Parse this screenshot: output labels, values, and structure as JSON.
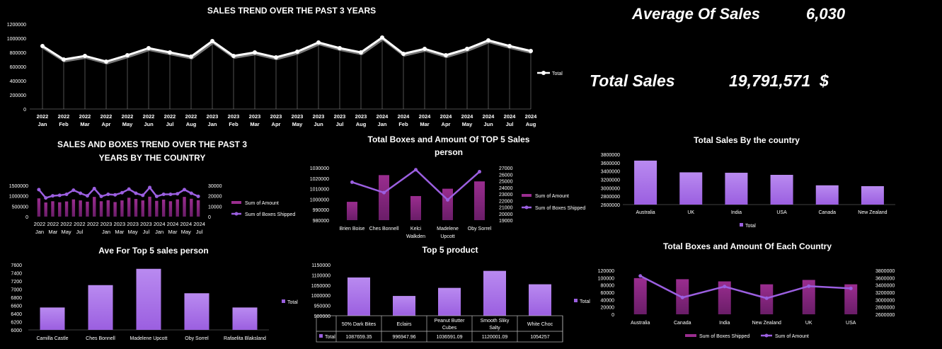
{
  "kpis": {
    "avg_label": "Average Of Sales",
    "avg_value": "6,030",
    "total_label": "Total Sales",
    "total_value": "19,791,571",
    "total_currency": "$"
  },
  "colors": {
    "purple": "#9b5fe0",
    "purple_light": "#b98af0",
    "magenta": "#9a2d8f",
    "line": "#ffffff"
  },
  "chart_data": [
    {
      "id": "trend",
      "type": "line",
      "title": "SALES TREND OVER THE PAST 3 YEARS",
      "years": [
        "2022",
        "2022",
        "2022",
        "2022",
        "2022",
        "2022",
        "2022",
        "2022",
        "2023",
        "2023",
        "2023",
        "2023",
        "2023",
        "2023",
        "2023",
        "2023",
        "2024",
        "2024",
        "2024",
        "2024",
        "2024",
        "2024",
        "2024",
        "2024"
      ],
      "months": [
        "Jan",
        "Feb",
        "Mar",
        "Apr",
        "May",
        "Jun",
        "Jul",
        "Aug",
        "Jan",
        "Feb",
        "Mar",
        "Apr",
        "May",
        "Jun",
        "Jul",
        "Aug",
        "Jan",
        "Feb",
        "Mar",
        "Apr",
        "May",
        "Jun",
        "Jul",
        "Aug"
      ],
      "values": [
        890000,
        700000,
        750000,
        670000,
        760000,
        860000,
        800000,
        740000,
        960000,
        750000,
        800000,
        730000,
        810000,
        940000,
        860000,
        800000,
        1010000,
        780000,
        850000,
        760000,
        850000,
        970000,
        890000,
        820000
      ],
      "ylim": [
        0,
        1200000
      ],
      "yticks": [
        0,
        200000,
        400000,
        600000,
        800000,
        1000000,
        1200000
      ],
      "legend": [
        "Total"
      ]
    },
    {
      "id": "salesboxes",
      "type": "bar+line",
      "title": [
        "SALES AND BOXES TREND OVER THE PAST 3",
        "YEARS BY THE COUNTRY"
      ],
      "amount": [
        880000,
        680000,
        740000,
        690000,
        730000,
        830000,
        780000,
        720000,
        950000,
        740000,
        790000,
        700000,
        780000,
        910000,
        850000,
        780000,
        960000,
        760000,
        820000,
        740000,
        830000,
        950000,
        860000,
        790000
      ],
      "boxes": [
        26000,
        18000,
        20000,
        20500,
        21500,
        25500,
        22500,
        20000,
        27000,
        19500,
        21500,
        21000,
        23000,
        26500,
        22500,
        20500,
        28000,
        19500,
        21500,
        21500,
        22000,
        26000,
        22500,
        19500
      ],
      "ylim_left": [
        0,
        1500000
      ],
      "yticks_left": [
        "0",
        "500000",
        "1000000",
        "1500000"
      ],
      "ylim_right": [
        0,
        30000
      ],
      "yticks_right": [
        "0",
        "10000",
        "20000",
        "30000"
      ],
      "x_years": [
        "2022",
        "2022",
        "2022",
        "2022",
        "2022",
        "2023",
        "2023",
        "2023",
        "2023",
        "2024",
        "2024",
        "2024",
        "2024"
      ],
      "x_months": [
        "Jan",
        "Mar",
        "May",
        "Jul",
        "",
        "Jan",
        "Mar",
        "May",
        "Jul",
        "Jan",
        "Mar",
        "May",
        "Jul"
      ],
      "legend": [
        "Sum of Amount",
        "Sum of Boxes Shipped"
      ]
    },
    {
      "id": "top5person",
      "type": "bar+line",
      "title": [
        "Total Boxes and Amount Of TOP 5  Sales",
        "person"
      ],
      "categories": [
        "Brien Boise",
        "Ches Bonnell",
        [
          "Kelci",
          "Walkden"
        ],
        [
          "Madelene",
          "Upcott"
        ],
        "Oby Sorrel"
      ],
      "amount": [
        997500,
        1023000,
        1003000,
        1010000,
        1017000
      ],
      "boxes": [
        24800,
        23200,
        26700,
        22100,
        26400
      ],
      "ylim_left": [
        980000,
        1030000
      ],
      "yticks_left": [
        "980000",
        "990000",
        "1000000",
        "1010000",
        "1020000",
        "1030000"
      ],
      "ylim_right": [
        19000,
        27000
      ],
      "yticks_right": [
        "19000",
        "20000",
        "21000",
        "22000",
        "23000",
        "24000",
        "25000",
        "26000",
        "27000"
      ],
      "legend": [
        "Sum of Amount",
        "Sum of Boxes Shipped"
      ]
    },
    {
      "id": "country",
      "type": "bar",
      "title": "Total Sales By the country",
      "categories": [
        "Australia",
        "UK",
        "India",
        "USA",
        "Canada",
        "New Zealand"
      ],
      "values": [
        3650000,
        3370000,
        3360000,
        3310000,
        3060000,
        3040000
      ],
      "ylim": [
        2600000,
        3800000
      ],
      "yticks": [
        "2600000",
        "2800000",
        "3000000",
        "3200000",
        "3400000",
        "3600000",
        "3800000"
      ],
      "legend": [
        "Total"
      ]
    },
    {
      "id": "avgperson",
      "type": "bar",
      "title": "Ave For Top 5 sales person",
      "categories": [
        "Camilla Castle",
        "Ches Bonnell",
        "Madelene Upcott",
        "Oby Sorrel",
        "Rafaelita Blaksland"
      ],
      "values": [
        6550,
        7100,
        7500,
        6900,
        6550
      ],
      "ylim": [
        6000,
        7600
      ],
      "yticks": [
        "6000",
        "6200",
        "6400",
        "6600",
        "6800",
        "7000",
        "7200",
        "7400",
        "7600"
      ],
      "legend": [
        "Total"
      ]
    },
    {
      "id": "top5product",
      "type": "bar",
      "title": "Top 5 product",
      "categories": [
        "50% Dark Bites",
        "Eclairs",
        [
          "Peanut Butter",
          "Cubes"
        ],
        [
          "Smooth Sliky",
          "Salty"
        ],
        "White Choc"
      ],
      "values": [
        1087659.35,
        996947.96,
        1036591.09,
        1120001.09,
        1054257
      ],
      "table_values": [
        "1087659.35",
        "996947.96",
        "1036591.09",
        "1120001.09",
        "1054257"
      ],
      "ylim": [
        900000,
        1150000
      ],
      "yticks": [
        "900000",
        "950000",
        "1000000",
        "1050000",
        "1100000",
        "1150000"
      ],
      "legend": [
        "Total"
      ],
      "row_label": "Total"
    },
    {
      "id": "boxesamount",
      "type": "bar+line",
      "title": "Total Boxes and Amount Of Each Country",
      "categories": [
        "Australia",
        "Canada",
        "India",
        "New Zealand",
        "UK",
        "USA"
      ],
      "boxes": [
        99000,
        96000,
        90000,
        82000,
        94000,
        82000
      ],
      "amount": [
        3650000,
        3060000,
        3360000,
        3040000,
        3370000,
        3310000
      ],
      "ylim_left": [
        0,
        120000
      ],
      "yticks_left": [
        "0",
        "20000",
        "40000",
        "60000",
        "80000",
        "100000",
        "120000"
      ],
      "ylim_right": [
        2600000,
        3800000
      ],
      "yticks_right": [
        "2600000",
        "2800000",
        "3000000",
        "3200000",
        "3400000",
        "3600000",
        "3800000"
      ],
      "legend": [
        "Sum of Boxes Shipped",
        "Sum of Amount"
      ]
    }
  ]
}
